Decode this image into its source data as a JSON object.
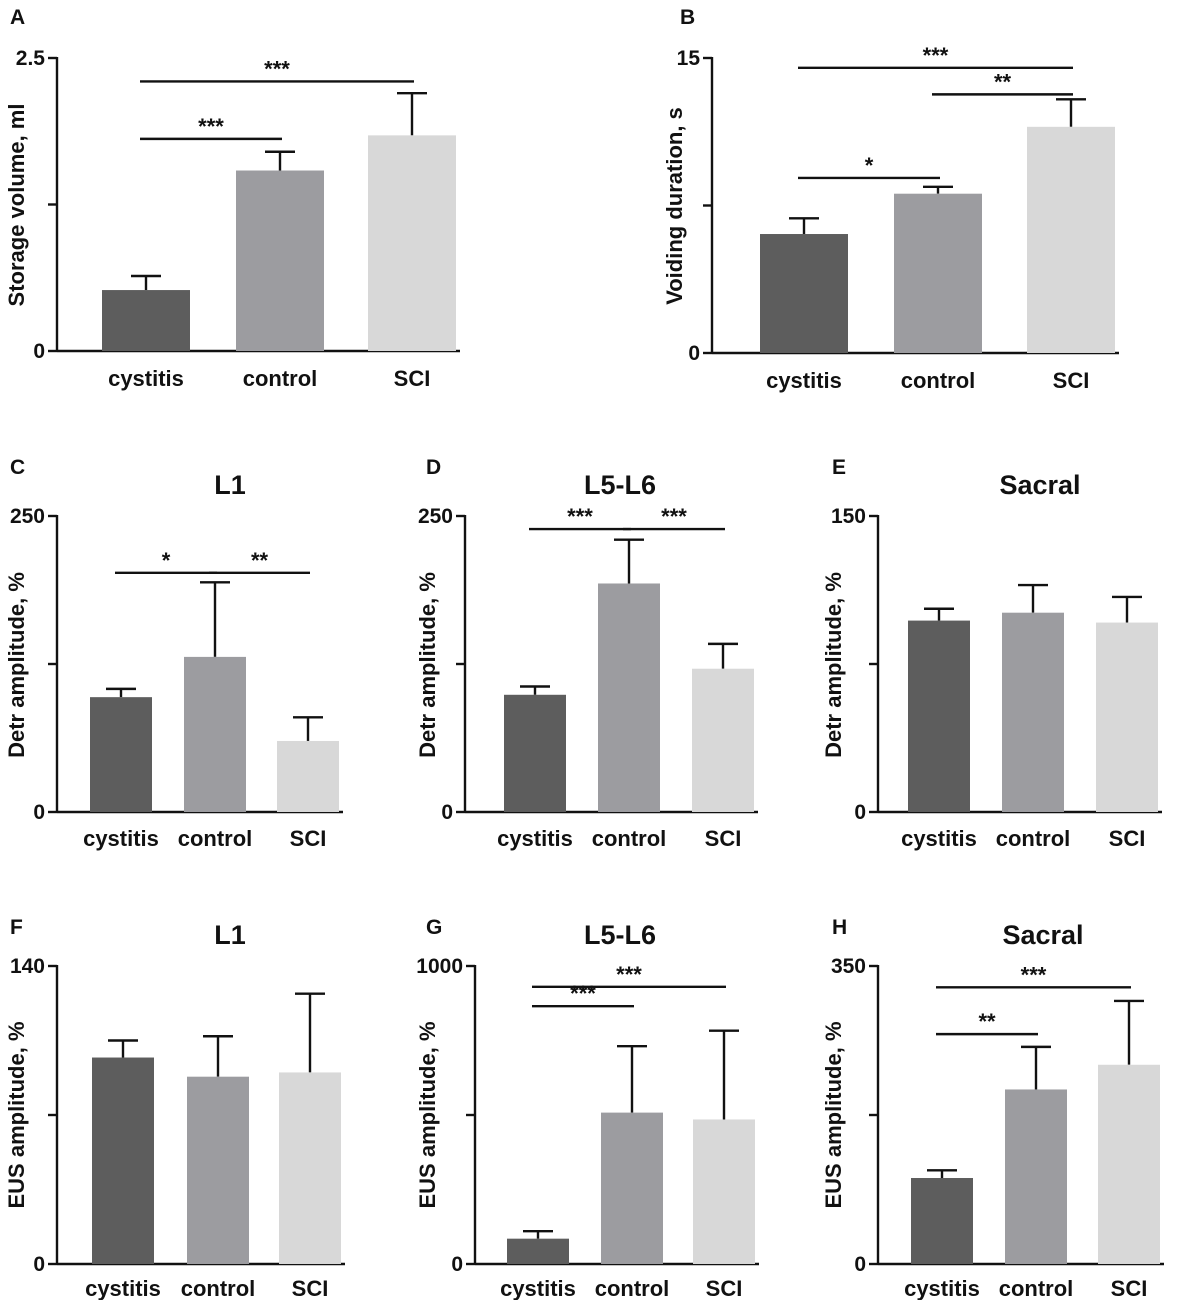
{
  "colors": {
    "cystitis": "#5d5d5d",
    "control": "#9c9ca0",
    "SCI": "#d8d8d8",
    "axis": "#111111"
  },
  "chart_data": [
    {
      "panel": "A",
      "type": "bar",
      "title": "",
      "ylabel": "Storage volume, ml",
      "ylim": [
        0,
        2.5
      ],
      "yticks": [
        "0",
        "",
        "2.5"
      ],
      "categories": [
        "cystitis",
        "control",
        "SCI"
      ],
      "values": [
        0.52,
        1.54,
        1.84
      ],
      "errors": [
        0.12,
        0.16,
        0.36
      ],
      "comparisons": [
        {
          "from": 0,
          "to": 1,
          "label": "***",
          "level": 1.81
        },
        {
          "from": 0,
          "to": 2,
          "label": "***",
          "level": 2.3
        }
      ]
    },
    {
      "panel": "B",
      "type": "bar",
      "title": "",
      "ylabel": "Voiding duration, s",
      "ylim": [
        0,
        15
      ],
      "yticks": [
        "0",
        "",
        "15"
      ],
      "categories": [
        "cystitis",
        "control",
        "SCI"
      ],
      "values": [
        6.05,
        8.1,
        11.5
      ],
      "errors": [
        0.8,
        0.35,
        1.4
      ],
      "comparisons": [
        {
          "from": 0,
          "to": 1,
          "label": "*",
          "level": 8.9
        },
        {
          "from": 1,
          "to": 2,
          "label": "**",
          "level": 13.15
        },
        {
          "from": 0,
          "to": 2,
          "label": "***",
          "level": 14.5
        }
      ]
    },
    {
      "panel": "C",
      "type": "bar",
      "title": "L1",
      "ylabel": "Detr amplitude, %",
      "ylim": [
        0,
        250
      ],
      "yticks": [
        "0",
        "",
        "250"
      ],
      "categories": [
        "cystitis",
        "control",
        "SCI"
      ],
      "values": [
        97,
        131,
        60
      ],
      "errors": [
        7,
        63,
        20
      ],
      "comparisons": [
        {
          "from": 0,
          "to": 1,
          "label": "*",
          "level": 202
        },
        {
          "from": 1,
          "to": 2,
          "label": "**",
          "level": 202
        }
      ]
    },
    {
      "panel": "D",
      "type": "bar",
      "title": "L5-L6",
      "ylabel": "Detr amplitude, %",
      "ylim": [
        0,
        250
      ],
      "yticks": [
        "0",
        "",
        "250"
      ],
      "categories": [
        "cystitis",
        "control",
        "SCI"
      ],
      "values": [
        99,
        193,
        121
      ],
      "errors": [
        7,
        37,
        21
      ],
      "comparisons": [
        {
          "from": 0,
          "to": 1,
          "label": "***",
          "level": 239
        },
        {
          "from": 1,
          "to": 2,
          "label": "***",
          "level": 239
        }
      ]
    },
    {
      "panel": "E",
      "type": "bar",
      "title": "Sacral",
      "ylabel": "Detr amplitude, %",
      "ylim": [
        0,
        150
      ],
      "yticks": [
        "0",
        "",
        "150"
      ],
      "categories": [
        "cystitis",
        "control",
        "SCI"
      ],
      "values": [
        97,
        101,
        96
      ],
      "errors": [
        6,
        14,
        13
      ],
      "comparisons": []
    },
    {
      "panel": "F",
      "type": "bar",
      "title": "L1",
      "ylabel": "EUS amplitude, %",
      "ylim": [
        0,
        140
      ],
      "yticks": [
        "0",
        "",
        "140"
      ],
      "categories": [
        "cystitis",
        "control",
        "SCI"
      ],
      "values": [
        97,
        88,
        90
      ],
      "errors": [
        8,
        19,
        37
      ],
      "comparisons": []
    },
    {
      "panel": "G",
      "type": "bar",
      "title": "L5-L6",
      "ylabel": "EUS amplitude, %",
      "ylim": [
        0,
        1000
      ],
      "yticks": [
        "0",
        "",
        "1000"
      ],
      "categories": [
        "cystitis",
        "control",
        "SCI"
      ],
      "values": [
        85,
        508,
        485
      ],
      "errors": [
        25,
        223,
        298
      ],
      "comparisons": [
        {
          "from": 0,
          "to": 1,
          "label": "***",
          "level": 865
        },
        {
          "from": 0,
          "to": 2,
          "label": "***",
          "level": 930
        }
      ]
    },
    {
      "panel": "H",
      "type": "bar",
      "title": "Sacral",
      "ylabel": "EUS amplitude, %",
      "ylim": [
        0,
        350
      ],
      "yticks": [
        "0",
        "",
        "350"
      ],
      "categories": [
        "cystitis",
        "control",
        "SCI"
      ],
      "values": [
        101,
        205,
        234
      ],
      "errors": [
        9,
        50,
        75
      ],
      "comparisons": [
        {
          "from": 0,
          "to": 1,
          "label": "**",
          "level": 270
        },
        {
          "from": 0,
          "to": 2,
          "label": "***",
          "level": 325
        }
      ]
    }
  ]
}
